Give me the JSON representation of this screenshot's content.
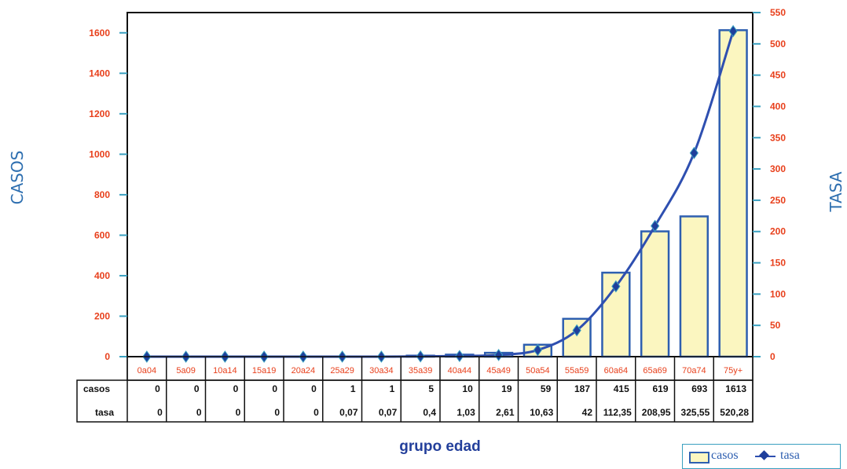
{
  "chart_data": {
    "type": "bar",
    "xlabel": "grupo edad",
    "ylabel": "CASOS",
    "y2label": "TASA",
    "categories": [
      "0a04",
      "5a09",
      "10a14",
      "15a19",
      "20a24",
      "25a29",
      "30a34",
      "35a39",
      "40a44",
      "45a49",
      "50a54",
      "55a59",
      "60a64",
      "65a69",
      "70a74",
      "75y+"
    ],
    "series": [
      {
        "name": "casos",
        "type": "bar",
        "axis": "left",
        "values": [
          0,
          0,
          0,
          0,
          0,
          1,
          1,
          5,
          10,
          19,
          59,
          187,
          415,
          619,
          693,
          1613
        ],
        "labels": [
          "0",
          "0",
          "0",
          "0",
          "0",
          "1",
          "1",
          "5",
          "10",
          "19",
          "59",
          "187",
          "415",
          "619",
          "693",
          "1613"
        ]
      },
      {
        "name": "tasa",
        "type": "line",
        "axis": "right",
        "values": [
          0,
          0,
          0,
          0,
          0,
          0.07,
          0.07,
          0.4,
          1.03,
          2.61,
          10.63,
          42,
          112.35,
          208.95,
          325.55,
          520.28
        ],
        "labels": [
          "0",
          "0",
          "0",
          "0",
          "0",
          "0,07",
          "0,07",
          "0,4",
          "1,03",
          "2,61",
          "10,63",
          "42",
          "112,35",
          "208,95",
          "325,55",
          "520,28"
        ]
      }
    ],
    "ylim": [
      0,
      1700
    ],
    "yticks": [
      0,
      200,
      400,
      600,
      800,
      1000,
      1200,
      1400,
      1600
    ],
    "y2lim": [
      0,
      550
    ],
    "y2ticks": [
      0,
      50,
      100,
      150,
      200,
      250,
      300,
      350,
      400,
      450,
      500,
      550
    ],
    "table_rows": [
      "casos",
      "tasa"
    ],
    "legend": {
      "position": "bottom-right",
      "entries": [
        "casos",
        "tasa"
      ]
    },
    "grid": false
  },
  "colors": {
    "bar_fill": "#fbf6c0",
    "bar_stroke": "#2e5fb0",
    "line": "#2e4fb0",
    "marker": "#1f3f9b",
    "tick_label": "#e8401c",
    "tick_mark": "#3aa0c0",
    "axis_title": "#2e6fb0",
    "xlabel": "#233f9b"
  }
}
